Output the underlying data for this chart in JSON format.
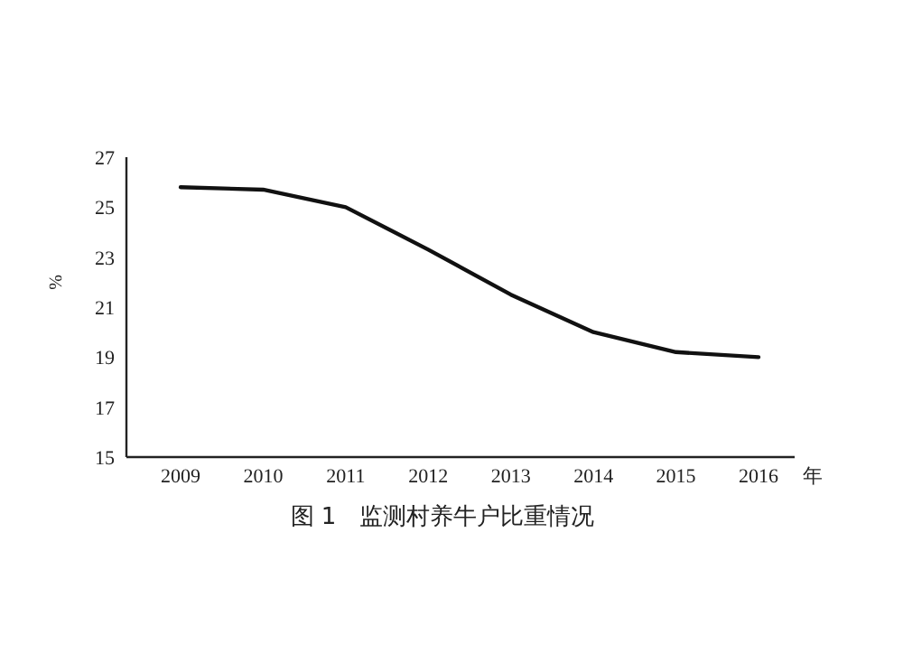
{
  "chart_data": {
    "type": "line",
    "categories": [
      "2009",
      "2010",
      "2011",
      "2012",
      "2013",
      "2014",
      "2015",
      "2016"
    ],
    "series": [
      {
        "color": "#111111",
        "values": [
          25.8,
          25.7,
          25.0,
          23.3,
          21.5,
          20.0,
          19.2,
          19.0
        ]
      }
    ],
    "ylim": [
      15,
      27
    ],
    "yticks": [
      15,
      17,
      19,
      21,
      23,
      25,
      27
    ],
    "ylabel": "%",
    "xlabel": "年",
    "grid": false,
    "marker": "none",
    "line_style": "solid",
    "annotations": [
      "图 1　监测村养牛户比重情况"
    ]
  }
}
